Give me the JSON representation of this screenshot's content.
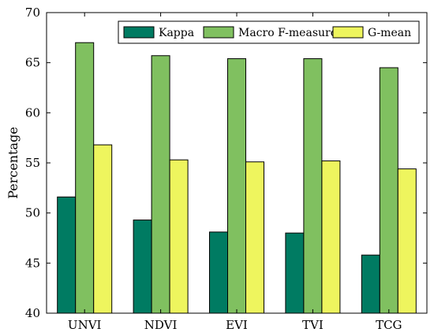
{
  "chart_data": {
    "type": "bar",
    "title": "",
    "xlabel": "",
    "ylabel": "Percentage",
    "ylim": [
      40,
      70
    ],
    "yticks": [
      40,
      45,
      50,
      55,
      60,
      65,
      70
    ],
    "categories": [
      "UNVI",
      "NDVI",
      "EVI",
      "TVI",
      "TCG"
    ],
    "series": [
      {
        "name": "Kappa",
        "color": "#007b62",
        "values": [
          51.6,
          49.3,
          48.1,
          48.0,
          45.8
        ]
      },
      {
        "name": "Macro F-measure",
        "color": "#80c060",
        "values": [
          67.0,
          65.7,
          65.4,
          65.4,
          64.5
        ]
      },
      {
        "name": "G-mean",
        "color": "#eef55e",
        "values": [
          56.8,
          55.3,
          55.1,
          55.2,
          54.4
        ]
      }
    ],
    "legend_position": "top-right",
    "grid": false
  }
}
